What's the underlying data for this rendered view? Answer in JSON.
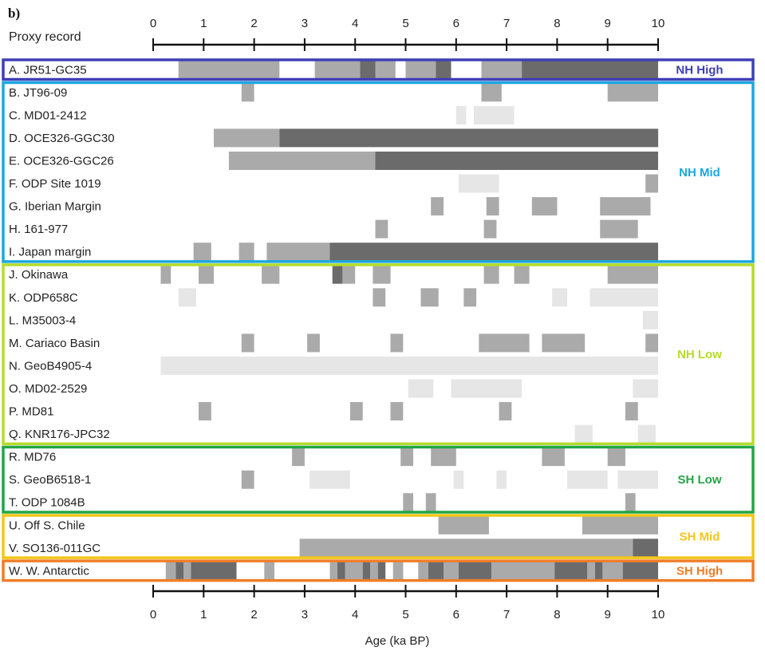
{
  "chart_data": {
    "type": "timeline",
    "panel_label": "b)",
    "header": "Proxy record",
    "xlabel": "Age (ka BP)",
    "xlim": [
      0,
      10
    ],
    "ticks": [
      "0",
      "1",
      "2",
      "3",
      "4",
      "5",
      "6",
      "7",
      "8",
      "9",
      "10"
    ],
    "colors": {
      "dark": "#6b6b6b",
      "mid": "#aaaaaa",
      "light": "#e6e6e6"
    },
    "regions": [
      {
        "name": "NH High",
        "color": "#3f3fb8",
        "rows": [
          0,
          0
        ]
      },
      {
        "name": "NH Mid",
        "color": "#1ea6e0",
        "rows": [
          1,
          8
        ]
      },
      {
        "name": "NH Low",
        "color": "#b5dc2c",
        "rows": [
          9,
          16
        ]
      },
      {
        "name": "SH Low",
        "color": "#22a546",
        "rows": [
          17,
          19
        ]
      },
      {
        "name": "SH Mid",
        "color": "#f2c619",
        "rows": [
          20,
          21
        ]
      },
      {
        "name": "SH High",
        "color": "#f07d28",
        "rows": [
          22,
          22
        ]
      }
    ],
    "records": [
      {
        "label": "A. JR51-GC35",
        "segments": [
          [
            0.5,
            2.5,
            "mid"
          ],
          [
            3.2,
            4.1,
            "mid"
          ],
          [
            4.1,
            4.4,
            "dark"
          ],
          [
            4.4,
            4.8,
            "mid"
          ],
          [
            5.0,
            5.6,
            "mid"
          ],
          [
            5.6,
            5.9,
            "dark"
          ],
          [
            6.5,
            7.3,
            "mid"
          ],
          [
            7.3,
            10,
            "dark"
          ]
        ]
      },
      {
        "label": "B. JT96-09",
        "segments": [
          [
            1.75,
            2.0,
            "mid"
          ],
          [
            6.5,
            6.9,
            "mid"
          ],
          [
            9.0,
            10,
            "mid"
          ]
        ]
      },
      {
        "label": "C. MD01-2412",
        "segments": [
          [
            6.0,
            6.2,
            "light"
          ],
          [
            6.35,
            7.15,
            "light"
          ]
        ]
      },
      {
        "label": "D. OCE326-GGC30",
        "segments": [
          [
            1.2,
            2.5,
            "mid"
          ],
          [
            2.5,
            10,
            "dark"
          ]
        ]
      },
      {
        "label": "E. OCE326-GGC26",
        "segments": [
          [
            1.5,
            4.4,
            "mid"
          ],
          [
            4.4,
            10,
            "dark"
          ]
        ]
      },
      {
        "label": "F. ODP Site 1019",
        "segments": [
          [
            6.05,
            6.85,
            "light"
          ],
          [
            9.75,
            10,
            "mid"
          ]
        ]
      },
      {
        "label": "G. Iberian Margin",
        "segments": [
          [
            5.5,
            5.75,
            "mid"
          ],
          [
            6.6,
            6.85,
            "mid"
          ],
          [
            7.5,
            8.0,
            "mid"
          ],
          [
            8.85,
            9.85,
            "mid"
          ]
        ]
      },
      {
        "label": "H. 161-977",
        "segments": [
          [
            4.4,
            4.65,
            "mid"
          ],
          [
            6.55,
            6.8,
            "mid"
          ],
          [
            8.85,
            9.6,
            "mid"
          ]
        ]
      },
      {
        "label": "I. Japan margin",
        "segments": [
          [
            0.8,
            1.15,
            "mid"
          ],
          [
            1.7,
            2.0,
            "mid"
          ],
          [
            2.25,
            3.5,
            "mid"
          ],
          [
            3.5,
            10,
            "dark"
          ]
        ]
      },
      {
        "label": "J. Okinawa",
        "segments": [
          [
            0.15,
            0.35,
            "mid"
          ],
          [
            0.9,
            1.2,
            "mid"
          ],
          [
            2.15,
            2.5,
            "mid"
          ],
          [
            3.55,
            3.75,
            "dark"
          ],
          [
            3.75,
            4.0,
            "mid"
          ],
          [
            4.35,
            4.7,
            "mid"
          ],
          [
            6.55,
            6.85,
            "mid"
          ],
          [
            7.15,
            7.45,
            "mid"
          ],
          [
            9.0,
            10,
            "mid"
          ]
        ]
      },
      {
        "label": "K. ODP658C",
        "segments": [
          [
            0.5,
            0.85,
            "light"
          ],
          [
            4.35,
            4.6,
            "mid"
          ],
          [
            5.3,
            5.65,
            "mid"
          ],
          [
            6.15,
            6.4,
            "mid"
          ],
          [
            7.9,
            8.2,
            "light"
          ],
          [
            8.65,
            10,
            "light"
          ]
        ]
      },
      {
        "label": "L. M35003-4",
        "segments": [
          [
            9.7,
            10,
            "light"
          ]
        ]
      },
      {
        "label": "M. Cariaco Basin",
        "segments": [
          [
            1.75,
            2.0,
            "mid"
          ],
          [
            3.05,
            3.3,
            "mid"
          ],
          [
            4.7,
            4.95,
            "mid"
          ],
          [
            6.45,
            7.45,
            "mid"
          ],
          [
            7.7,
            8.55,
            "mid"
          ],
          [
            9.75,
            10,
            "mid"
          ]
        ]
      },
      {
        "label": "N. GeoB4905-4",
        "segments": [
          [
            0.15,
            10,
            "light"
          ]
        ]
      },
      {
        "label": "O. MD02-2529",
        "segments": [
          [
            5.05,
            5.55,
            "light"
          ],
          [
            5.9,
            7.3,
            "light"
          ],
          [
            9.5,
            10,
            "light"
          ]
        ]
      },
      {
        "label": "P. MD81",
        "segments": [
          [
            0.9,
            1.15,
            "mid"
          ],
          [
            3.9,
            4.15,
            "mid"
          ],
          [
            4.7,
            4.95,
            "mid"
          ],
          [
            6.85,
            7.1,
            "mid"
          ],
          [
            9.35,
            9.6,
            "mid"
          ]
        ]
      },
      {
        "label": "Q. KNR176-JPC32",
        "segments": [
          [
            8.35,
            8.7,
            "light"
          ],
          [
            9.6,
            9.95,
            "light"
          ]
        ]
      },
      {
        "label": "R. MD76",
        "segments": [
          [
            2.75,
            3.0,
            "mid"
          ],
          [
            4.9,
            5.15,
            "mid"
          ],
          [
            5.5,
            6.0,
            "mid"
          ],
          [
            7.7,
            8.15,
            "mid"
          ],
          [
            9.0,
            9.35,
            "mid"
          ]
        ]
      },
      {
        "label": "S. GeoB6518-1",
        "segments": [
          [
            1.75,
            2.0,
            "mid"
          ],
          [
            3.1,
            3.9,
            "light"
          ],
          [
            5.95,
            6.15,
            "light"
          ],
          [
            6.8,
            7.0,
            "light"
          ],
          [
            8.2,
            9.0,
            "light"
          ],
          [
            9.2,
            10,
            "light"
          ]
        ]
      },
      {
        "label": "T. ODP 1084B",
        "segments": [
          [
            4.95,
            5.15,
            "mid"
          ],
          [
            5.4,
            5.6,
            "mid"
          ],
          [
            9.35,
            9.55,
            "mid"
          ]
        ]
      },
      {
        "label": "U. Off S. Chile",
        "segments": [
          [
            5.65,
            6.65,
            "mid"
          ],
          [
            8.5,
            10,
            "mid"
          ]
        ]
      },
      {
        "label": "V. SO136-011GC",
        "segments": [
          [
            2.9,
            9.5,
            "mid"
          ],
          [
            9.5,
            10,
            "dark"
          ]
        ]
      },
      {
        "label": "W. W. Antarctic",
        "segments": [
          [
            0.25,
            0.45,
            "mid"
          ],
          [
            0.45,
            0.6,
            "dark"
          ],
          [
            0.6,
            0.75,
            "mid"
          ],
          [
            0.75,
            1.65,
            "dark"
          ],
          [
            2.2,
            2.4,
            "mid"
          ],
          [
            3.5,
            3.65,
            "mid"
          ],
          [
            3.65,
            3.8,
            "dark"
          ],
          [
            3.8,
            4.15,
            "mid"
          ],
          [
            4.15,
            4.3,
            "dark"
          ],
          [
            4.3,
            4.45,
            "mid"
          ],
          [
            4.45,
            4.6,
            "dark"
          ],
          [
            4.75,
            4.95,
            "mid"
          ],
          [
            5.25,
            5.45,
            "mid"
          ],
          [
            5.45,
            5.75,
            "dark"
          ],
          [
            5.75,
            6.05,
            "mid"
          ],
          [
            6.05,
            6.7,
            "dark"
          ],
          [
            6.7,
            7.95,
            "mid"
          ],
          [
            7.95,
            8.6,
            "dark"
          ],
          [
            8.6,
            8.75,
            "mid"
          ],
          [
            8.75,
            8.9,
            "dark"
          ],
          [
            8.9,
            9.3,
            "mid"
          ],
          [
            9.3,
            10,
            "dark"
          ]
        ]
      }
    ]
  }
}
